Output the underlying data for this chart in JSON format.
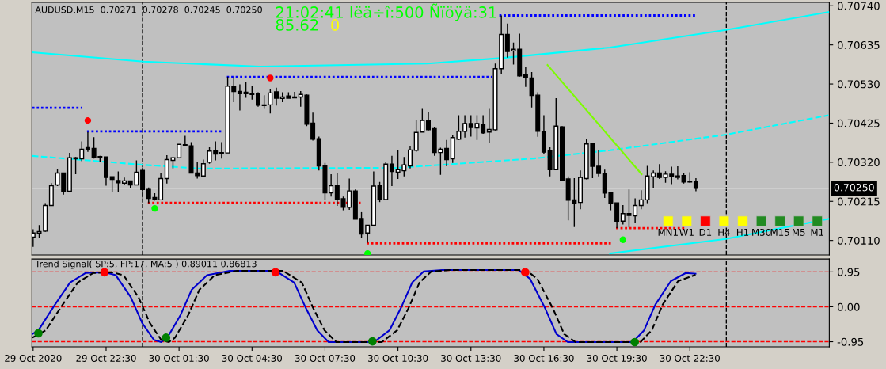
{
  "chart_data": [
    {
      "type": "candlestick",
      "title": "AUDUSD,M15  0.70271  0.70278  0.70245  0.70250",
      "annotations": [
        "21:02:41 lëä÷î:500 Ñïöÿä:31",
        "85.62",
        "0"
      ],
      "x": [
        "2020-10-29T19:30",
        "2020-10-29T19:45",
        "2020-10-29T20:00",
        "2020-10-29T20:15",
        "2020-10-29T20:30",
        "2020-10-29T20:45",
        "2020-10-29T21:00",
        "2020-10-29T21:15",
        "2020-10-29T21:30",
        "2020-10-29T21:45",
        "2020-10-29T22:00",
        "2020-10-29T22:15",
        "2020-10-29T22:30",
        "2020-10-29T22:45",
        "2020-10-29T23:00",
        "2020-10-29T23:15",
        "2020-10-29T23:30",
        "2020-10-29T23:45",
        "2020-10-30T00:00",
        "2020-10-30T00:15",
        "2020-10-30T00:30",
        "2020-10-30T00:45",
        "2020-10-30T01:00",
        "2020-10-30T01:15",
        "2020-10-30T01:30",
        "2020-10-30T01:45",
        "2020-10-30T02:00",
        "2020-10-30T02:15",
        "2020-10-30T02:30",
        "2020-10-30T02:45",
        "2020-10-30T03:00",
        "2020-10-30T03:15",
        "2020-10-30T03:30",
        "2020-10-30T03:45",
        "2020-10-30T04:00",
        "2020-10-30T04:15",
        "2020-10-30T04:30",
        "2020-10-30T04:45",
        "2020-10-30T05:00",
        "2020-10-30T05:15",
        "2020-10-30T05:30",
        "2020-10-30T05:45",
        "2020-10-30T06:00",
        "2020-10-30T06:15",
        "2020-10-30T06:30",
        "2020-10-30T06:45",
        "2020-10-30T07:00",
        "2020-10-30T07:15",
        "2020-10-30T07:30",
        "2020-10-30T07:45",
        "2020-10-30T08:00",
        "2020-10-30T08:15",
        "2020-10-30T08:30",
        "2020-10-30T08:45",
        "2020-10-30T09:00",
        "2020-10-30T09:15",
        "2020-10-30T09:30",
        "2020-10-30T09:45",
        "2020-10-30T10:00",
        "2020-10-30T10:15",
        "2020-10-30T10:30",
        "2020-10-30T10:45",
        "2020-10-30T11:00",
        "2020-10-30T11:15",
        "2020-10-30T11:30",
        "2020-10-30T11:45",
        "2020-10-30T12:00",
        "2020-10-30T12:15",
        "2020-10-30T12:30",
        "2020-10-30T12:45",
        "2020-10-30T13:00",
        "2020-10-30T13:15",
        "2020-10-30T13:30",
        "2020-10-30T13:45",
        "2020-10-30T14:00",
        "2020-10-30T14:15",
        "2020-10-30T14:30",
        "2020-10-30T14:45",
        "2020-10-30T15:00",
        "2020-10-30T15:15",
        "2020-10-30T15:30",
        "2020-10-30T15:45",
        "2020-10-30T16:00",
        "2020-10-30T16:15",
        "2020-10-30T16:30",
        "2020-10-30T16:45",
        "2020-10-30T17:00",
        "2020-10-30T17:15",
        "2020-10-30T17:30",
        "2020-10-30T17:45",
        "2020-10-30T18:00",
        "2020-10-30T18:15",
        "2020-10-30T18:30",
        "2020-10-30T18:45",
        "2020-10-30T19:00",
        "2020-10-30T19:15",
        "2020-10-30T19:30",
        "2020-10-30T19:45",
        "2020-10-30T20:00",
        "2020-10-30T20:15",
        "2020-10-30T20:30",
        "2020-10-30T20:45",
        "2020-10-30T21:00",
        "2020-10-30T21:15",
        "2020-10-30T21:30",
        "2020-10-30T21:45",
        "2020-10-30T22:00",
        "2020-10-30T22:15",
        "2020-10-30T22:30",
        "2020-10-30T22:45"
      ],
      "ohlc": [
        [
          0.70119,
          0.7014,
          0.70093,
          0.7013
        ],
        [
          0.7013,
          0.70151,
          0.70118,
          0.70134
        ],
        [
          0.70135,
          0.7021,
          0.70133,
          0.70204
        ],
        [
          0.70204,
          0.70264,
          0.70204,
          0.70257
        ],
        [
          0.70259,
          0.70301,
          0.70256,
          0.70291
        ],
        [
          0.70291,
          0.70291,
          0.70233,
          0.70242
        ],
        [
          0.70242,
          0.70345,
          0.70242,
          0.70332
        ],
        [
          0.70332,
          0.70334,
          0.70288,
          0.70329
        ],
        [
          0.70329,
          0.70376,
          0.70323,
          0.70355
        ],
        [
          0.70359,
          0.70401,
          0.70348,
          0.70354
        ],
        [
          0.70357,
          0.70387,
          0.7033,
          0.70332
        ],
        [
          0.70335,
          0.70337,
          0.7032,
          0.70332
        ],
        [
          0.70334,
          0.70334,
          0.70257,
          0.70279
        ],
        [
          0.70281,
          0.70281,
          0.7024,
          0.70274
        ],
        [
          0.70271,
          0.70295,
          0.7024,
          0.70265
        ],
        [
          0.70264,
          0.70279,
          0.70259,
          0.7027
        ],
        [
          0.7027,
          0.7027,
          0.7025,
          0.70259
        ],
        [
          0.70259,
          0.70325,
          0.70259,
          0.70293
        ],
        [
          0.70298,
          0.70305,
          0.70225,
          0.70247
        ],
        [
          0.70247,
          0.70252,
          0.7021,
          0.70223
        ],
        [
          0.70225,
          0.70237,
          0.70217,
          0.7022
        ],
        [
          0.70219,
          0.70291,
          0.70219,
          0.70276
        ],
        [
          0.70276,
          0.70339,
          0.70263,
          0.70327
        ],
        [
          0.70325,
          0.70332,
          0.70303,
          0.70332
        ],
        [
          0.70332,
          0.70368,
          0.70332,
          0.70368
        ],
        [
          0.70366,
          0.70391,
          0.70362,
          0.70365
        ],
        [
          0.70364,
          0.70374,
          0.70291,
          0.70291
        ],
        [
          0.70291,
          0.70322,
          0.70276,
          0.70284
        ],
        [
          0.70283,
          0.70327,
          0.70283,
          0.70316
        ],
        [
          0.7032,
          0.7036,
          0.70316,
          0.7035
        ],
        [
          0.7035,
          0.70376,
          0.70325,
          0.70342
        ],
        [
          0.70346,
          0.70374,
          0.7033,
          0.70343
        ],
        [
          0.70345,
          0.7055,
          0.70345,
          0.70524
        ],
        [
          0.70524,
          0.70548,
          0.70481,
          0.7051
        ],
        [
          0.7051,
          0.70529,
          0.70459,
          0.70504
        ],
        [
          0.70508,
          0.70536,
          0.70493,
          0.70504
        ],
        [
          0.70505,
          0.70525,
          0.70488,
          0.70502
        ],
        [
          0.70504,
          0.70508,
          0.70469,
          0.70473
        ],
        [
          0.70474,
          0.705,
          0.70463,
          0.70472
        ],
        [
          0.70474,
          0.70517,
          0.70451,
          0.70506
        ],
        [
          0.70509,
          0.7052,
          0.70472,
          0.70492
        ],
        [
          0.70491,
          0.70508,
          0.70481,
          0.70495
        ],
        [
          0.70498,
          0.70508,
          0.70492,
          0.70492
        ],
        [
          0.70494,
          0.70509,
          0.70492,
          0.70493
        ],
        [
          0.70495,
          0.70511,
          0.70469,
          0.70502
        ],
        [
          0.705,
          0.70502,
          0.70417,
          0.70422
        ],
        [
          0.70425,
          0.70453,
          0.70378,
          0.70382
        ],
        [
          0.70383,
          0.70389,
          0.70298,
          0.7031
        ],
        [
          0.7031,
          0.70318,
          0.7022,
          0.70238
        ],
        [
          0.70238,
          0.70288,
          0.70228,
          0.70257
        ],
        [
          0.70257,
          0.7029,
          0.70203,
          0.7022
        ],
        [
          0.70222,
          0.70228,
          0.70191,
          0.70199
        ],
        [
          0.70199,
          0.70276,
          0.70192,
          0.70243
        ],
        [
          0.70243,
          0.70247,
          0.70167,
          0.70167
        ],
        [
          0.70169,
          0.70186,
          0.70116,
          0.70127
        ],
        [
          0.7013,
          0.70151,
          0.70104,
          0.70151
        ],
        [
          0.70151,
          0.70295,
          0.70151,
          0.70256
        ],
        [
          0.70257,
          0.70267,
          0.70213,
          0.70219
        ],
        [
          0.7022,
          0.7032,
          0.7022,
          0.70315
        ],
        [
          0.70315,
          0.70337,
          0.70256,
          0.70295
        ],
        [
          0.70293,
          0.70353,
          0.70275,
          0.703
        ],
        [
          0.70297,
          0.70334,
          0.70282,
          0.70313
        ],
        [
          0.7031,
          0.70362,
          0.70303,
          0.70353
        ],
        [
          0.70352,
          0.70434,
          0.70348,
          0.704
        ],
        [
          0.70401,
          0.70463,
          0.70401,
          0.70432
        ],
        [
          0.70432,
          0.70456,
          0.70405,
          0.70407
        ],
        [
          0.7041,
          0.70413,
          0.70337,
          0.70346
        ],
        [
          0.70346,
          0.70359,
          0.70286,
          0.70355
        ],
        [
          0.70357,
          0.7038,
          0.70309,
          0.70327
        ],
        [
          0.70329,
          0.70392,
          0.70318,
          0.70386
        ],
        [
          0.70382,
          0.70446,
          0.7038,
          0.70403
        ],
        [
          0.70403,
          0.70446,
          0.70386,
          0.70424
        ],
        [
          0.70424,
          0.70446,
          0.70389,
          0.70413
        ],
        [
          0.70412,
          0.70446,
          0.7038,
          0.70424
        ],
        [
          0.70421,
          0.70446,
          0.70396,
          0.70399
        ],
        [
          0.70401,
          0.70463,
          0.70373,
          0.70408
        ],
        [
          0.70407,
          0.70585,
          0.70405,
          0.70571
        ],
        [
          0.70571,
          0.70714,
          0.70558,
          0.70663
        ],
        [
          0.70663,
          0.70692,
          0.70601,
          0.70617
        ],
        [
          0.70619,
          0.70641,
          0.70582,
          0.70623
        ],
        [
          0.70623,
          0.70665,
          0.7055,
          0.70552
        ],
        [
          0.70555,
          0.70575,
          0.70522,
          0.70548
        ],
        [
          0.70546,
          0.70562,
          0.70467,
          0.70499
        ],
        [
          0.705,
          0.70508,
          0.70388,
          0.70403
        ],
        [
          0.70403,
          0.70446,
          0.70341,
          0.70347
        ],
        [
          0.70352,
          0.7036,
          0.70282,
          0.703
        ],
        [
          0.703,
          0.70492,
          0.703,
          0.70417
        ],
        [
          0.70415,
          0.70417,
          0.70272,
          0.70272
        ],
        [
          0.70275,
          0.70282,
          0.70164,
          0.70218
        ],
        [
          0.70219,
          0.70277,
          0.70146,
          0.7021
        ],
        [
          0.70212,
          0.70298,
          0.70194,
          0.70279
        ],
        [
          0.70276,
          0.70383,
          0.70274,
          0.70369
        ],
        [
          0.70369,
          0.70369,
          0.70277,
          0.70309
        ],
        [
          0.70309,
          0.70353,
          0.70282,
          0.7029
        ],
        [
          0.7029,
          0.703,
          0.70224,
          0.70237
        ],
        [
          0.70238,
          0.70238,
          0.70191,
          0.7021
        ],
        [
          0.70211,
          0.70211,
          0.70143,
          0.70162
        ],
        [
          0.70162,
          0.70205,
          0.70153,
          0.70182
        ],
        [
          0.70182,
          0.70247,
          0.70145,
          0.70177
        ],
        [
          0.70176,
          0.70223,
          0.70158,
          0.70204
        ],
        [
          0.70204,
          0.70245,
          0.70194,
          0.70219
        ],
        [
          0.70219,
          0.7031,
          0.7021,
          0.70283
        ],
        [
          0.70281,
          0.70298,
          0.7025,
          0.70291
        ],
        [
          0.70291,
          0.70315,
          0.70275,
          0.70279
        ],
        [
          0.70279,
          0.70296,
          0.70265,
          0.70288
        ],
        [
          0.70288,
          0.70308,
          0.70261,
          0.70281
        ],
        [
          0.70279,
          0.70309,
          0.70274,
          0.70283
        ],
        [
          0.70284,
          0.7029,
          0.70263,
          0.70267
        ],
        [
          0.70268,
          0.70293,
          0.70265,
          0.70267
        ],
        [
          0.70268,
          0.70277,
          0.70242,
          0.7025
        ]
      ],
      "series": [
        {
          "type": "line",
          "color": "#00ffff",
          "line_style": "solid",
          "x": [
            "2020-10-29T19:28",
            "2020-10-30T00:02",
            "2020-10-30T04:50",
            "2020-10-30T11:43",
            "2020-10-30T14:50",
            "2020-10-30T19:13",
            "2020-10-30T23:59",
            "2020-10-31T04:12"
          ],
          "values": [
            0.70615,
            0.7059,
            0.70577,
            0.70585,
            0.706,
            0.70628,
            0.70675,
            0.70723
          ]
        },
        {
          "type": "line",
          "color": "#00ffff",
          "line_style": "dashed",
          "x": [
            "2020-10-29T19:28",
            "2020-10-30T00:02",
            "2020-10-30T02:20",
            "2020-10-30T10:28",
            "2020-10-30T16:05",
            "2020-10-30T19:13",
            "2020-10-30T23:59",
            "2020-10-31T04:12"
          ],
          "values": [
            0.70337,
            0.70313,
            0.70303,
            0.70305,
            0.7033,
            0.70352,
            0.70394,
            0.70446
          ]
        },
        {
          "type": "line",
          "color": "#00ffff",
          "line_style": "solid",
          "x": [
            "2020-10-30T19:13",
            "2020-10-30T23:59",
            "2020-10-31T04:12"
          ],
          "values": [
            0.70075,
            0.70114,
            0.70168
          ]
        },
        {
          "type": "line",
          "color": "#0000ff",
          "line_style": "dotted",
          "x": [
            "2020-10-29T19:28",
            "2020-10-29T21:31"
          ],
          "values": [
            0.70466,
            0.70466
          ]
        },
        {
          "type": "line",
          "color": "#0000ff",
          "line_style": "dotted",
          "x": [
            "2020-10-29T21:43",
            "2020-10-30T03:16"
          ],
          "values": [
            0.70403,
            0.70403
          ]
        },
        {
          "type": "line",
          "color": "#0000ff",
          "line_style": "dotted",
          "x": [
            "2020-10-30T03:28",
            "2020-10-30T14:22"
          ],
          "values": [
            0.70549,
            0.70549
          ]
        },
        {
          "type": "line",
          "color": "#0000ff",
          "line_style": "dotted",
          "x": [
            "2020-10-30T14:40",
            "2020-10-30T22:44"
          ],
          "values": [
            0.70714,
            0.70714
          ]
        },
        {
          "type": "line",
          "color": "#ff0000",
          "line_style": "dotted",
          "x": [
            "2020-10-30T00:13",
            "2020-10-30T08:58"
          ],
          "values": [
            0.70211,
            0.70211
          ]
        },
        {
          "type": "line",
          "color": "#ff0000",
          "line_style": "dotted",
          "x": [
            "2020-10-30T09:13",
            "2020-10-30T19:16"
          ],
          "values": [
            0.70102,
            0.70102
          ]
        },
        {
          "type": "line",
          "color": "#ff0000",
          "line_style": "dotted",
          "x": [
            "2020-10-30T19:28",
            "2020-10-30T22:20"
          ],
          "values": [
            0.70143,
            0.70143
          ]
        },
        {
          "type": "line",
          "color": "#7cfc00",
          "line_style": "solid",
          "x": [
            "2020-10-30T16:39",
            "2020-10-30T20:31"
          ],
          "values": [
            0.70581,
            0.70288
          ]
        },
        {
          "type": "scatter",
          "color": "#ff0000",
          "marker": "circle",
          "x": [
            "2020-10-29T21:45",
            "2020-10-30T05:15"
          ],
          "values": [
            0.70432,
            0.70546
          ]
        },
        {
          "type": "scatter",
          "color": "#00ff00",
          "marker": "circle",
          "x": [
            "2020-10-30T00:30",
            "2020-10-30T09:15",
            "2020-10-30T19:45"
          ],
          "values": [
            0.70196,
            0.70075,
            0.70112
          ]
        }
      ],
      "ref_lines": [
        {
          "axis": "x",
          "value": "2020-10-30T00:00",
          "color": "#000000",
          "line_style": "dashed"
        },
        {
          "axis": "x",
          "value": "2020-10-31T00:00",
          "color": "#000000",
          "line_style": "dashed"
        },
        {
          "axis": "y",
          "value": 0.7025,
          "label": "0.70250",
          "color": "#dcdcdc",
          "line_style": "solid"
        }
      ],
      "xlim": [
        "2020-10-29T19:27",
        "2020-10-31T04:14"
      ],
      "ylim": [
        0.70071,
        0.70749
      ],
      "yticks": [
        {
          "value": 0.7074,
          "label": "0.70740"
        },
        0.70635,
        {
          "value": 0.7053,
          "label": "0.70530"
        },
        0.70425,
        {
          "value": 0.7032,
          "label": "0.70320"
        },
        0.70215,
        {
          "value": 0.7011,
          "label": "0.70110"
        }
      ],
      "tick_labels": "y",
      "grid": false
    },
    {
      "type": "line",
      "title": "Trend Signal( SP:5, FP:17, MA:5 ) 0.89011 0.86813",
      "series": [
        {
          "color": "#0000cd",
          "line_style": "solid",
          "x": [
            "2020-10-29T19:28",
            "2020-10-29T19:43",
            "2020-10-29T20:24",
            "2020-10-29T21:01",
            "2020-10-29T21:39",
            "2020-10-29T22:26",
            "2020-10-29T22:54",
            "2020-10-29T23:31",
            "2020-10-29T23:59",
            "2020-10-30T00:28",
            "2020-10-30T00:46",
            "2020-10-30T01:01",
            "2020-10-30T01:33",
            "2020-10-30T02:01",
            "2020-10-30T02:39",
            "2020-10-30T03:35",
            "2020-10-30T05:28",
            "2020-10-30T06:14",
            "2020-10-30T06:43",
            "2020-10-30T07:11",
            "2020-10-30T07:39",
            "2020-10-30T09:31",
            "2020-10-30T10:09",
            "2020-10-30T10:37",
            "2020-10-30T11:05",
            "2020-10-30T11:33",
            "2020-10-30T12:20",
            "2020-10-30T15:28",
            "2020-10-30T15:56",
            "2020-10-30T16:33",
            "2020-10-30T17:01",
            "2020-10-30T17:29",
            "2020-10-30T20:09",
            "2020-10-30T20:37",
            "2020-10-30T21:05",
            "2020-10-30T21:43",
            "2020-10-30T22:20",
            "2020-10-30T22:44"
          ],
          "values": [
            -0.74,
            -0.64,
            0.06,
            0.66,
            0.92,
            0.94,
            0.86,
            0.26,
            -0.44,
            -0.9,
            -0.96,
            -0.84,
            -0.24,
            0.46,
            0.86,
            0.98,
            0.98,
            0.66,
            -0.04,
            -0.64,
            -0.96,
            -0.96,
            -0.64,
            -0.04,
            0.66,
            0.96,
            1.0,
            1.0,
            0.76,
            -0.04,
            -0.74,
            -0.96,
            -0.96,
            -0.64,
            0.06,
            0.7,
            0.92,
            0.9
          ]
        },
        {
          "color": "#000000",
          "line_style": "dashed",
          "x": [
            "2020-10-29T19:28",
            "2020-10-29T19:46",
            "2020-10-29T20:01",
            "2020-10-29T20:43",
            "2020-10-29T21:20",
            "2020-10-29T21:58",
            "2020-10-29T22:44",
            "2020-10-29T23:13",
            "2020-10-29T23:50",
            "2020-10-30T00:18",
            "2020-10-30T00:46",
            "2020-10-30T01:05",
            "2020-10-30T01:20",
            "2020-10-30T01:52",
            "2020-10-30T02:20",
            "2020-10-30T02:58",
            "2020-10-30T03:53",
            "2020-10-30T05:46",
            "2020-10-30T06:33",
            "2020-10-30T07:01",
            "2020-10-30T07:29",
            "2020-10-30T07:58",
            "2020-10-30T09:50",
            "2020-10-30T10:28",
            "2020-10-30T10:56",
            "2020-10-30T11:23",
            "2020-10-30T11:52",
            "2020-10-30T12:38",
            "2020-10-30T15:46",
            "2020-10-30T16:14",
            "2020-10-30T16:52",
            "2020-10-30T17:20",
            "2020-10-30T17:48",
            "2020-10-30T20:28",
            "2020-10-30T20:56",
            "2020-10-30T21:23",
            "2020-10-30T22:01",
            "2020-10-30T22:44"
          ],
          "values": [
            -0.84,
            -0.74,
            -0.64,
            0.06,
            0.66,
            0.92,
            0.94,
            0.86,
            0.26,
            -0.44,
            -0.9,
            -0.96,
            -0.84,
            -0.24,
            0.46,
            0.86,
            0.98,
            0.98,
            0.66,
            -0.04,
            -0.64,
            -0.96,
            -0.96,
            -0.64,
            -0.04,
            0.66,
            0.96,
            1.0,
            1.0,
            0.76,
            -0.04,
            -0.74,
            -0.96,
            -0.96,
            -0.64,
            0.06,
            0.7,
            0.87
          ]
        },
        {
          "type": "scatter",
          "color": "#ff0000",
          "marker": "circle",
          "x": [
            "2020-10-29T22:26",
            "2020-10-30T05:28",
            "2020-10-30T15:44"
          ],
          "values": [
            0.94,
            0.94,
            0.94
          ]
        },
        {
          "type": "scatter",
          "color": "#008000",
          "marker": "circle",
          "x": [
            "2020-10-29T19:43",
            "2020-10-30T00:58",
            "2020-10-30T09:27",
            "2020-10-30T20:14"
          ],
          "values": [
            -0.72,
            -0.84,
            -0.94,
            -0.96
          ]
        }
      ],
      "ref_lines": [
        {
          "axis": "y",
          "value": 0.95,
          "color": "#ff0000",
          "line_style": "dashed"
        },
        {
          "axis": "y",
          "value": 0,
          "color": "#ff0000",
          "line_style": "dashed"
        },
        {
          "axis": "y",
          "value": -0.95,
          "color": "#ff0000",
          "line_style": "dashed"
        },
        {
          "axis": "x",
          "value": "2020-10-30T00:00",
          "color": "#000000",
          "line_style": "dashed"
        },
        {
          "axis": "x",
          "value": "2020-10-31T00:00",
          "color": "#000000",
          "line_style": "dashed"
        }
      ],
      "xlim": [
        "2020-10-29T19:27",
        "2020-10-31T04:14"
      ],
      "ylim": [
        -1.09,
        1.3
      ],
      "xticks": [
        {
          "value": "2020-10-29T19:30",
          "label": "29 Oct 2020"
        },
        {
          "value": "2020-10-29T22:30",
          "label": "29 Oct 22:30"
        },
        {
          "value": "2020-10-30T01:30",
          "label": "30 Oct 01:30"
        },
        {
          "value": "2020-10-30T04:30",
          "label": "30 Oct 04:30"
        },
        {
          "value": "2020-10-30T07:30",
          "label": "30 Oct 07:30"
        },
        {
          "value": "2020-10-30T10:30",
          "label": "30 Oct 10:30"
        },
        {
          "value": "2020-10-30T13:30",
          "label": "30 Oct 13:30"
        },
        {
          "value": "2020-10-30T16:30",
          "label": "30 Oct 16:30"
        },
        {
          "value": "2020-10-30T19:30",
          "label": "30 Oct 19:30"
        },
        {
          "value": "2020-10-30T22:30",
          "label": "30 Oct 22:30"
        }
      ],
      "yticks": [
        0.95,
        {
          "value": 0,
          "label": "0.00"
        },
        {
          "value": -0.95,
          "label": "-0.95"
        }
      ],
      "grid": false
    },
    {
      "type": "other",
      "categories": [
        "MN1",
        "W1",
        "D1",
        "H4",
        "H1",
        "M30",
        "M15",
        "M5",
        "M1"
      ],
      "colors": [
        "#ffff00",
        "#ffff00",
        "#ff0000",
        "#ffff00",
        "#ffff00",
        "#228b22",
        "#228b22",
        "#228b22",
        "#228b22"
      ]
    }
  ]
}
